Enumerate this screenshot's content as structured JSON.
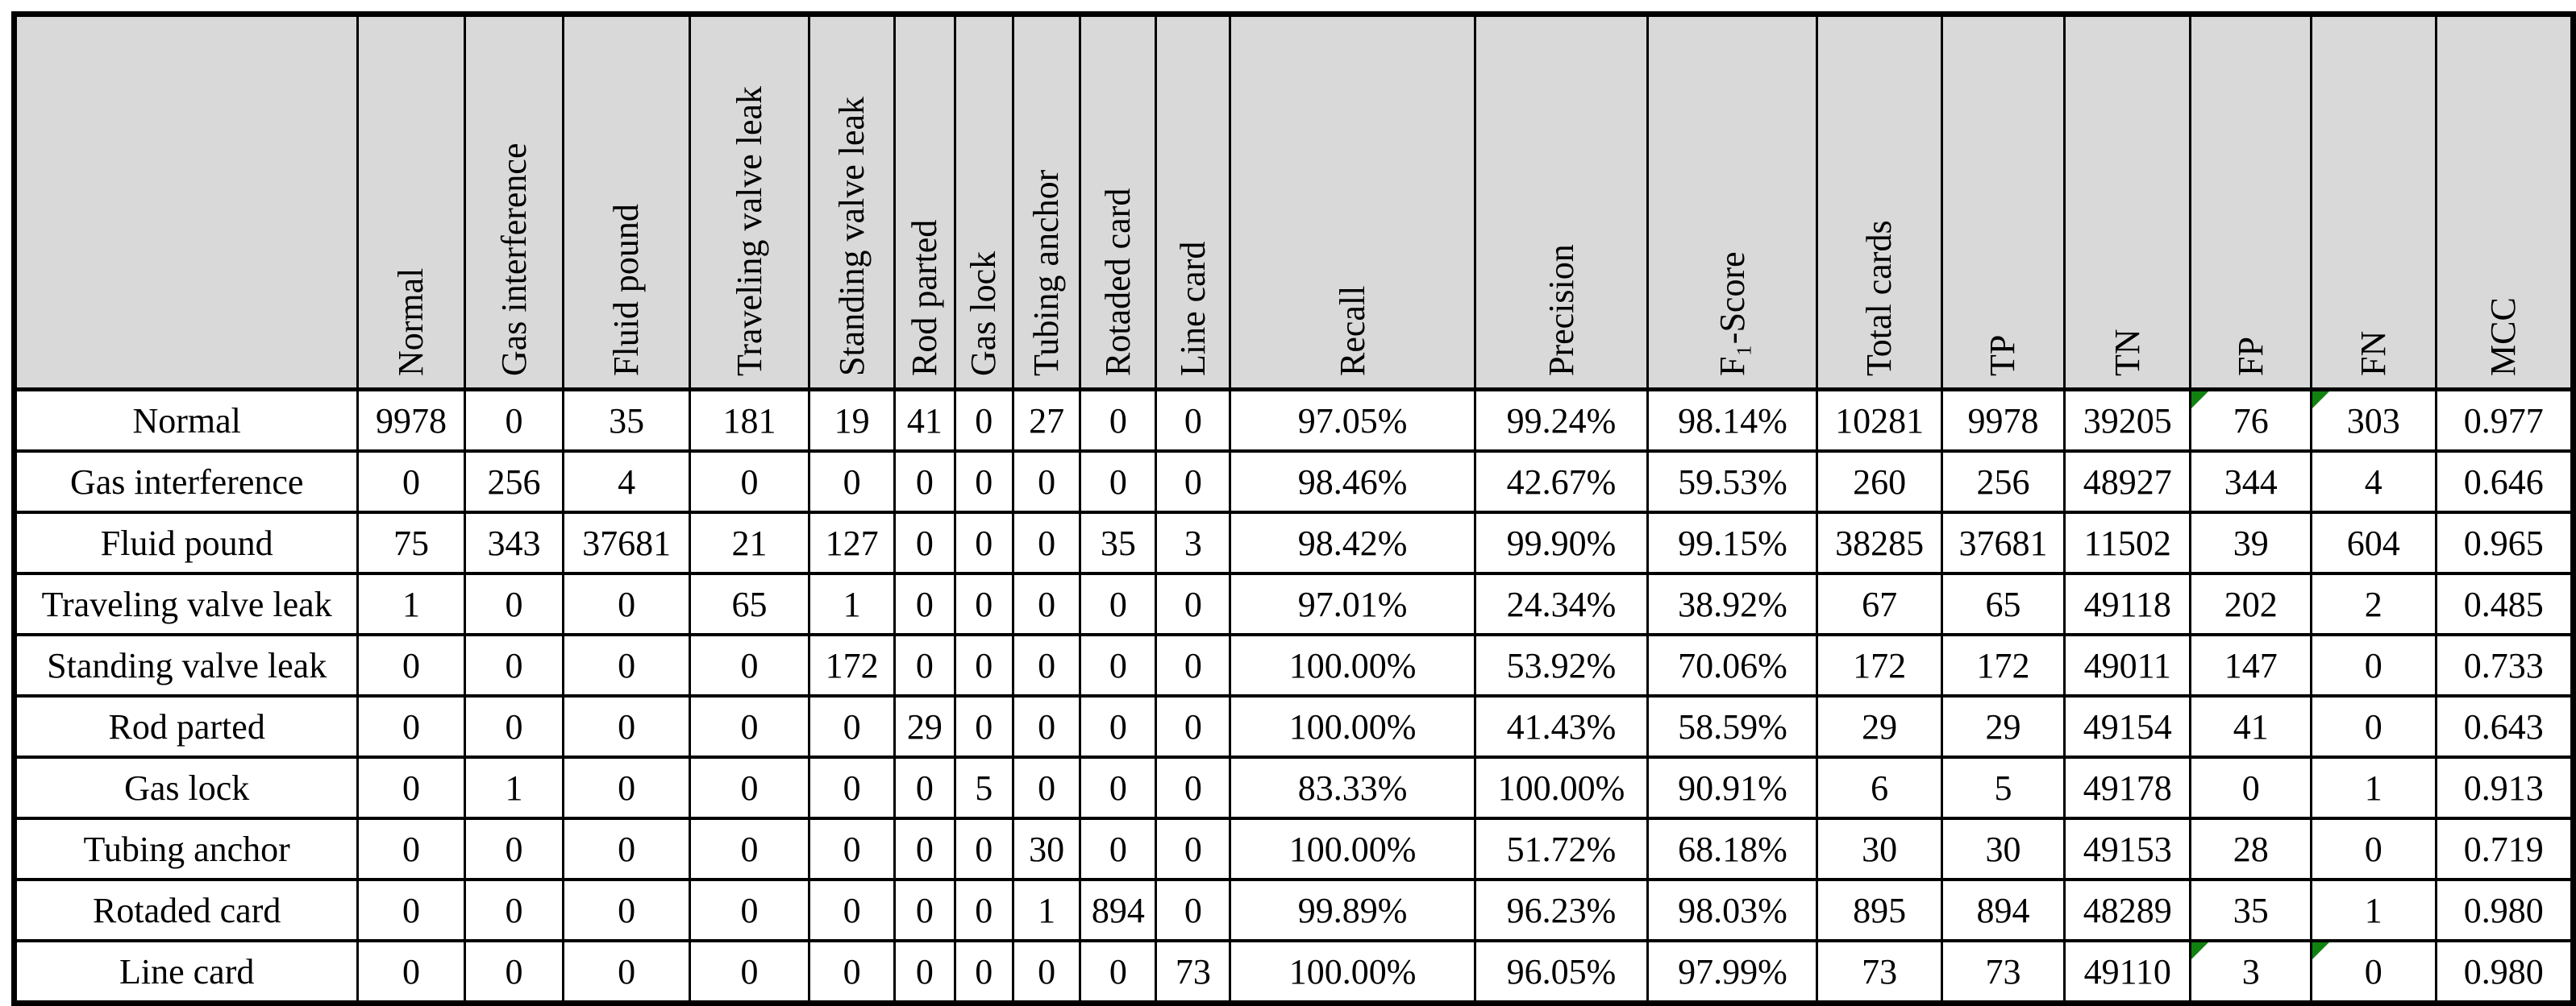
{
  "colors": {
    "header_bg": "#d9d9d9",
    "diagonal_bg": "#a6a6a6",
    "total_column_bg": "#d9d9d9",
    "cell_bg": "#ffffff",
    "border": "#000000",
    "error_flag_green": "#118211"
  },
  "chart_data": {
    "type": "table",
    "corner_label": "",
    "columns": [
      "Normal",
      "Gas interference",
      "Fluid pound",
      "Traveling valve leak",
      "Standing valve leak",
      "Rod parted",
      "Gas lock",
      "Tubing anchor",
      "Rotaded card",
      "Line card",
      "Recall",
      "Precision",
      "F₁-Score",
      "Total cards",
      "TP",
      "TN",
      "FP",
      "FN",
      "MCC"
    ],
    "total_cards_column_index": 13,
    "rows": [
      {
        "label": "Normal",
        "diag": 0,
        "flags": [
          16,
          17
        ],
        "cells": [
          "9978",
          "0",
          "35",
          "181",
          "19",
          "41",
          "0",
          "27",
          "0",
          "0",
          "97.05%",
          "99.24%",
          "98.14%",
          "10281",
          "9978",
          "39205",
          "76",
          "303",
          "0.977"
        ]
      },
      {
        "label": "Gas interference",
        "diag": 1,
        "flags": [],
        "cells": [
          "0",
          "256",
          "4",
          "0",
          "0",
          "0",
          "0",
          "0",
          "0",
          "0",
          "98.46%",
          "42.67%",
          "59.53%",
          "260",
          "256",
          "48927",
          "344",
          "4",
          "0.646"
        ]
      },
      {
        "label": "Fluid pound",
        "diag": 2,
        "flags": [],
        "cells": [
          "75",
          "343",
          "37681",
          "21",
          "127",
          "0",
          "0",
          "0",
          "35",
          "3",
          "98.42%",
          "99.90%",
          "99.15%",
          "38285",
          "37681",
          "11502",
          "39",
          "604",
          "0.965"
        ]
      },
      {
        "label": "Traveling valve leak",
        "diag": 3,
        "flags": [],
        "cells": [
          "1",
          "0",
          "0",
          "65",
          "1",
          "0",
          "0",
          "0",
          "0",
          "0",
          "97.01%",
          "24.34%",
          "38.92%",
          "67",
          "65",
          "49118",
          "202",
          "2",
          "0.485"
        ]
      },
      {
        "label": "Standing valve leak",
        "diag": 4,
        "flags": [],
        "cells": [
          "0",
          "0",
          "0",
          "0",
          "172",
          "0",
          "0",
          "0",
          "0",
          "0",
          "100.00%",
          "53.92%",
          "70.06%",
          "172",
          "172",
          "49011",
          "147",
          "0",
          "0.733"
        ]
      },
      {
        "label": "Rod parted",
        "diag": 5,
        "flags": [],
        "cells": [
          "0",
          "0",
          "0",
          "0",
          "0",
          "29",
          "0",
          "0",
          "0",
          "0",
          "100.00%",
          "41.43%",
          "58.59%",
          "29",
          "29",
          "49154",
          "41",
          "0",
          "0.643"
        ]
      },
      {
        "label": "Gas lock",
        "diag": 6,
        "flags": [],
        "cells": [
          "0",
          "1",
          "0",
          "0",
          "0",
          "0",
          "5",
          "0",
          "0",
          "0",
          "83.33%",
          "100.00%",
          "90.91%",
          "6",
          "5",
          "49178",
          "0",
          "1",
          "0.913"
        ]
      },
      {
        "label": "Tubing anchor",
        "diag": 7,
        "flags": [],
        "cells": [
          "0",
          "0",
          "0",
          "0",
          "0",
          "0",
          "0",
          "30",
          "0",
          "0",
          "100.00%",
          "51.72%",
          "68.18%",
          "30",
          "30",
          "49153",
          "28",
          "0",
          "0.719"
        ]
      },
      {
        "label": "Rotaded card",
        "diag": 8,
        "flags": [],
        "cells": [
          "0",
          "0",
          "0",
          "0",
          "0",
          "0",
          "0",
          "1",
          "894",
          "0",
          "99.89%",
          "96.23%",
          "98.03%",
          "895",
          "894",
          "48289",
          "35",
          "1",
          "0.980"
        ]
      },
      {
        "label": "Line card",
        "diag": 9,
        "flags": [
          16,
          17
        ],
        "cells": [
          "0",
          "0",
          "0",
          "0",
          "0",
          "0",
          "0",
          "0",
          "0",
          "73",
          "100.00%",
          "96.05%",
          "97.99%",
          "73",
          "73",
          "49110",
          "3",
          "0",
          "0.980"
        ]
      }
    ]
  }
}
